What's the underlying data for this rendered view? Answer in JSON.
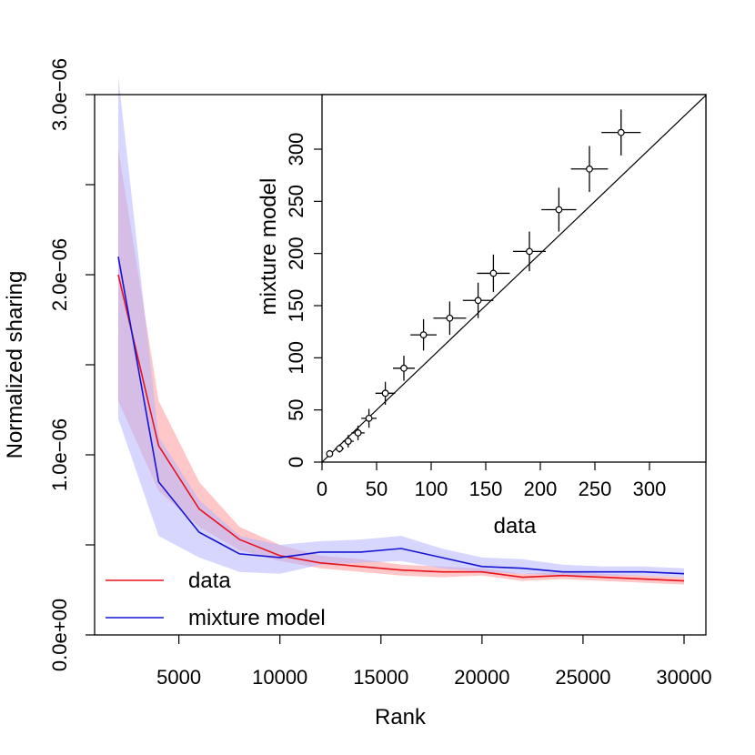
{
  "chart_data": [
    {
      "type": "line",
      "xlabel": "Rank",
      "ylabel": "Normalized sharing",
      "xlim": [
        0,
        31000
      ],
      "ylim": [
        0,
        3e-06
      ],
      "xticks": [
        5000,
        10000,
        15000,
        20000,
        25000,
        30000
      ],
      "xtick_labels": [
        "5000",
        "10000",
        "15000",
        "20000",
        "25000",
        "30000"
      ],
      "yticks": [
        0,
        5e-07,
        1e-06,
        1.5e-06,
        2e-06,
        2.5e-06,
        3e-06
      ],
      "ytick_labels": [
        "0.0e+00",
        "",
        "1.0e−06",
        "",
        "2.0e−06",
        "",
        "3.0e−06"
      ],
      "legend_position": "bottom-left",
      "series": [
        {
          "name": "data",
          "color": "#e8121b",
          "band_color": "#ff9999",
          "x": [
            2000,
            4000,
            6000,
            8000,
            10000,
            12000,
            14000,
            16000,
            18000,
            20000,
            22000,
            24000,
            26000,
            28000,
            30000
          ],
          "y": [
            2e-06,
            1.05e-06,
            7e-07,
            5.3e-07,
            4.4e-07,
            4e-07,
            3.8e-07,
            3.6e-07,
            3.5e-07,
            3.5e-07,
            3.2e-07,
            3.3e-07,
            3.2e-07,
            3.1e-07,
            3e-07
          ],
          "lower": [
            1.3e-06,
            8e-07,
            6e-07,
            4.7e-07,
            4.1e-07,
            3.7e-07,
            3.5e-07,
            3.3e-07,
            3.2e-07,
            3.3e-07,
            3e-07,
            3.1e-07,
            3e-07,
            2.9e-07,
            2.8e-07
          ],
          "upper": [
            2.7e-06,
            1.3e-06,
            8.5e-07,
            6e-07,
            5e-07,
            4.4e-07,
            4.2e-07,
            3.9e-07,
            3.8e-07,
            3.7e-07,
            3.4e-07,
            3.5e-07,
            3.4e-07,
            3.3e-07,
            3.2e-07
          ]
        },
        {
          "name": "mixture model",
          "color": "#1414d2",
          "band_color": "#b4b4ff",
          "x": [
            2000,
            4000,
            6000,
            8000,
            10000,
            12000,
            14000,
            16000,
            18000,
            20000,
            22000,
            24000,
            26000,
            28000,
            30000
          ],
          "y": [
            2.1e-06,
            8.5e-07,
            5.7e-07,
            4.5e-07,
            4.3e-07,
            4.6e-07,
            4.6e-07,
            4.8e-07,
            4.3e-07,
            3.8e-07,
            3.7e-07,
            3.5e-07,
            3.5e-07,
            3.5e-07,
            3.4e-07
          ],
          "lower": [
            1.2e-06,
            5.5e-07,
            4.3e-07,
            3.5e-07,
            3.4e-07,
            3.9e-07,
            4e-07,
            4.1e-07,
            3.7e-07,
            3.5e-07,
            3.4e-07,
            3.3e-07,
            3.3e-07,
            3.3e-07,
            3.2e-07
          ],
          "upper": [
            3.1e-06,
            1.1e-06,
            7.5e-07,
            5.5e-07,
            5e-07,
            5.2e-07,
            5.3e-07,
            5.5e-07,
            4.8e-07,
            4.3e-07,
            4.2e-07,
            3.9e-07,
            3.8e-07,
            3.8e-07,
            3.7e-07
          ]
        }
      ]
    },
    {
      "type": "scatter",
      "xlabel": "data",
      "ylabel": "mixture model",
      "xlim": [
        0,
        345
      ],
      "ylim": [
        0,
        355
      ],
      "xticks": [
        0,
        50,
        100,
        150,
        200,
        250,
        300
      ],
      "yticks": [
        0,
        50,
        100,
        150,
        200,
        250,
        300
      ],
      "reference_line": "y = x",
      "points": [
        {
          "x": 7,
          "y": 8,
          "xerr": 3,
          "yerr": 3
        },
        {
          "x": 16,
          "y": 13,
          "xerr": 4,
          "yerr": 4
        },
        {
          "x": 24,
          "y": 20,
          "xerr": 5,
          "yerr": 6
        },
        {
          "x": 33,
          "y": 28,
          "xerr": 6,
          "yerr": 7
        },
        {
          "x": 43,
          "y": 42,
          "xerr": 7,
          "yerr": 9
        },
        {
          "x": 58,
          "y": 66,
          "xerr": 9,
          "yerr": 11
        },
        {
          "x": 75,
          "y": 90,
          "xerr": 10,
          "yerr": 12
        },
        {
          "x": 93,
          "y": 122,
          "xerr": 12,
          "yerr": 15
        },
        {
          "x": 117,
          "y": 138,
          "xerr": 15,
          "yerr": 16
        },
        {
          "x": 143,
          "y": 155,
          "xerr": 14,
          "yerr": 17
        },
        {
          "x": 157,
          "y": 181,
          "xerr": 15,
          "yerr": 18
        },
        {
          "x": 190,
          "y": 202,
          "xerr": 15,
          "yerr": 19
        },
        {
          "x": 217,
          "y": 242,
          "xerr": 16,
          "yerr": 21
        },
        {
          "x": 245,
          "y": 281,
          "xerr": 17,
          "yerr": 22
        },
        {
          "x": 274,
          "y": 316,
          "xerr": 18,
          "yerr": 22
        }
      ]
    }
  ]
}
